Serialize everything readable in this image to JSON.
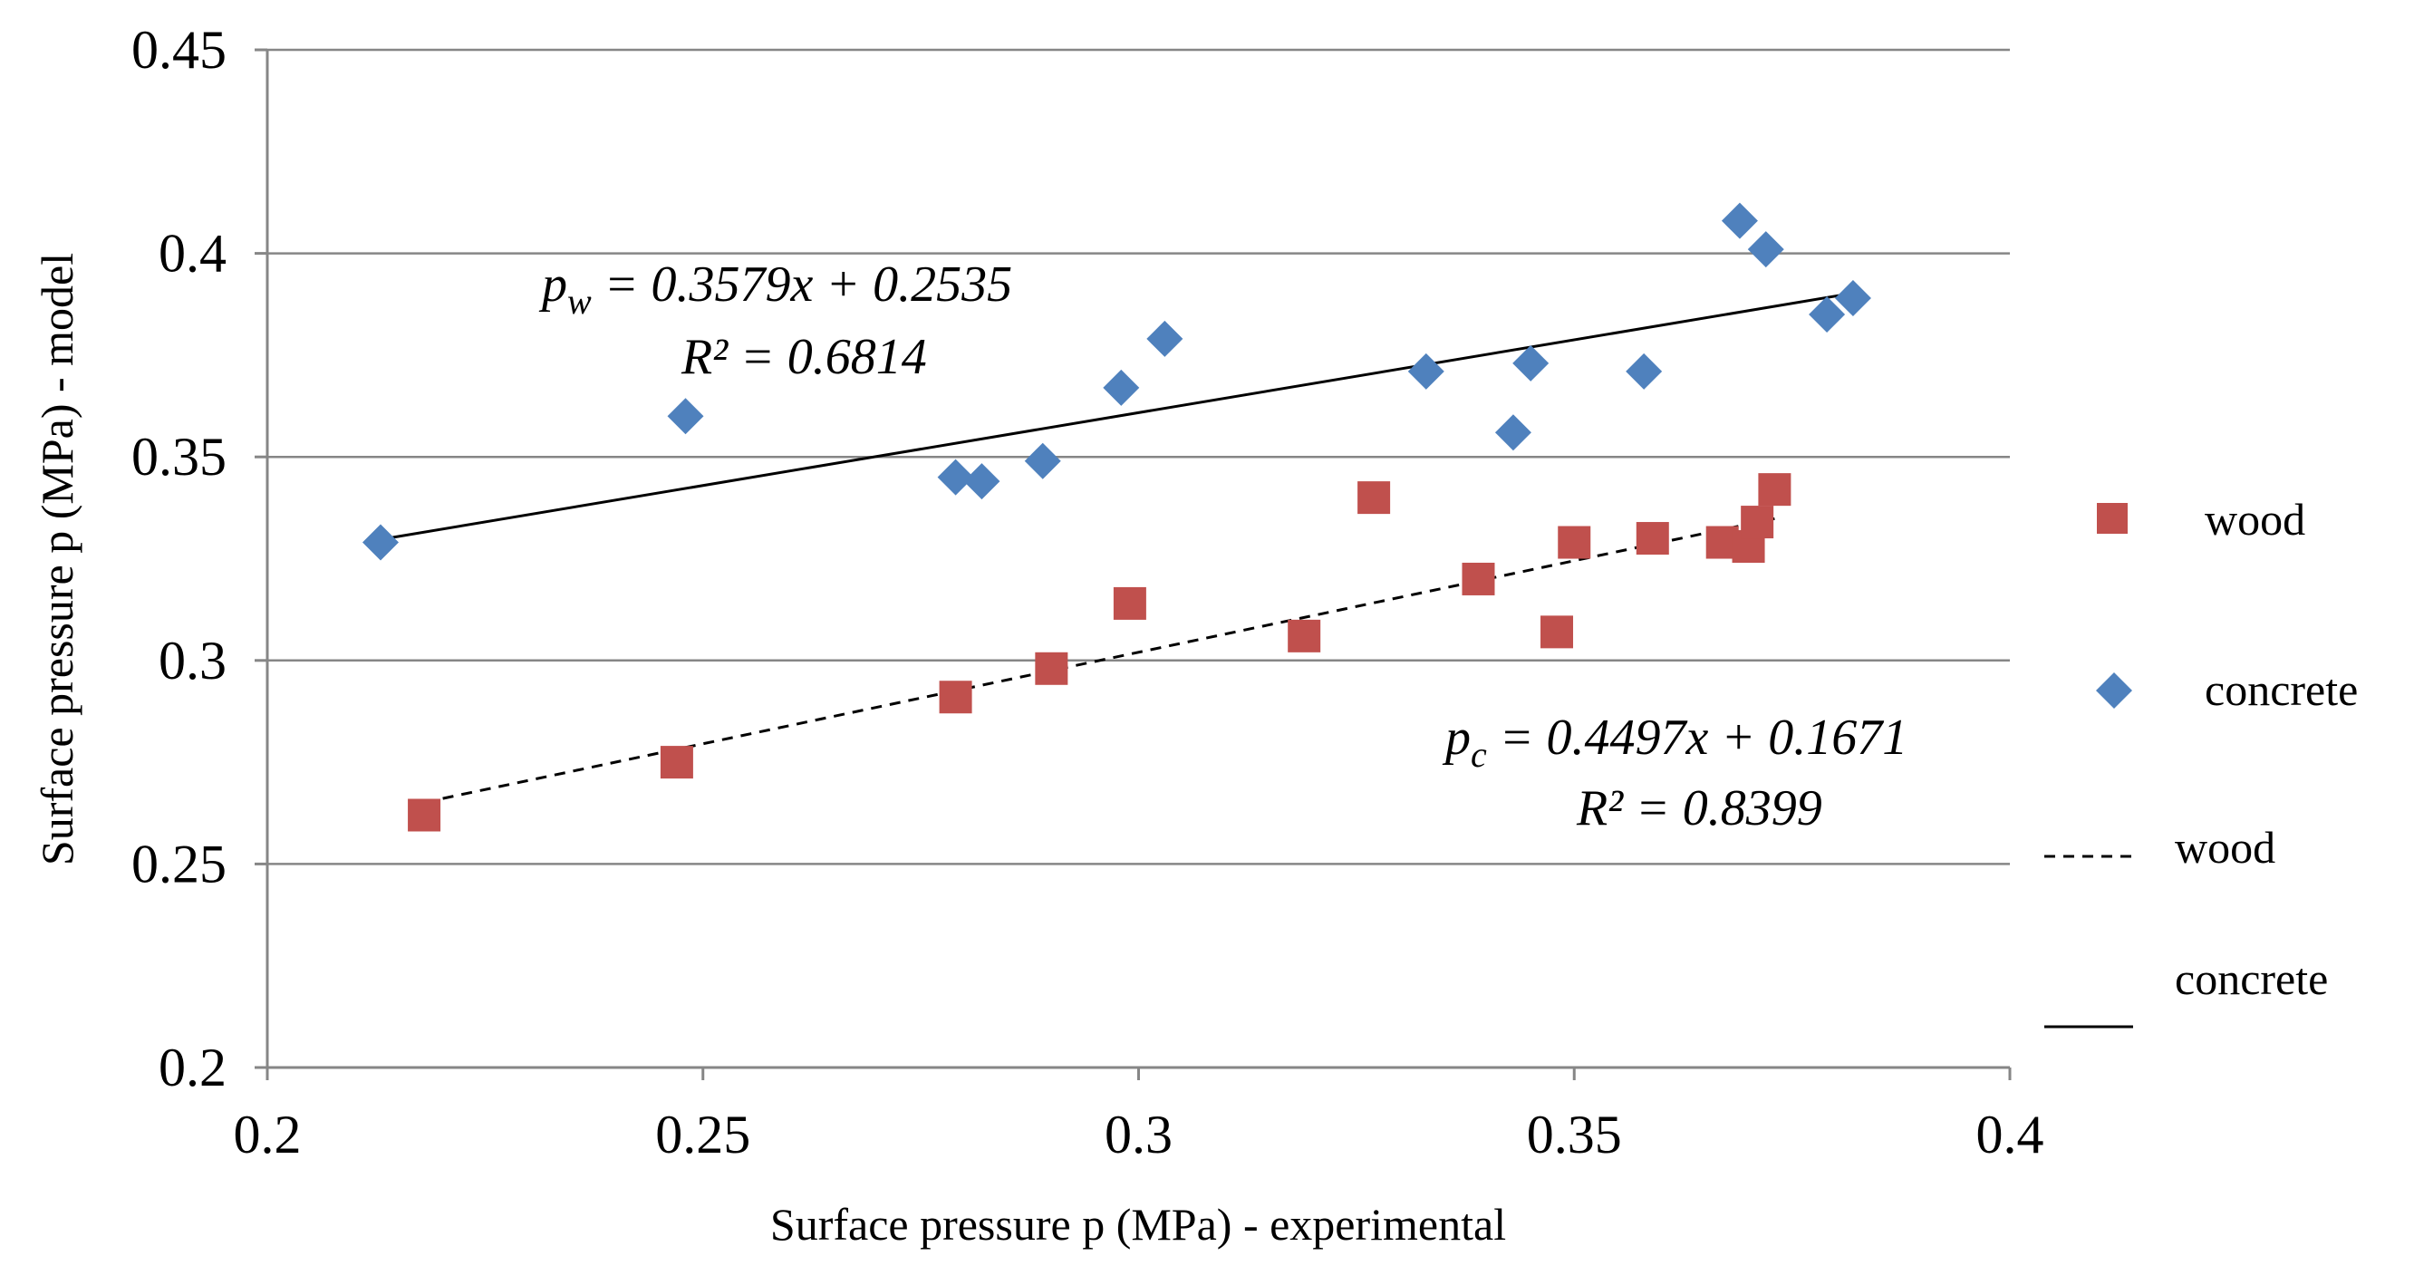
{
  "chart_data": {
    "type": "scatter",
    "xlabel": "Surface pressure p (MPa) - experimental",
    "ylabel": "Surface pressure p (MPa) - model",
    "xlim": [
      0.2,
      0.4
    ],
    "ylim": [
      0.2,
      0.45
    ],
    "x_ticks": [
      "0.2",
      "0.25",
      "0.3",
      "0.35",
      "0.4"
    ],
    "y_ticks": [
      "0.2",
      "0.25",
      "0.3",
      "0.35",
      "0.4",
      "0.45"
    ],
    "grid": "horizontal",
    "legend_position": "right",
    "series": [
      {
        "name": "wood",
        "marker": "square",
        "color": "#c0504d",
        "points": [
          [
            0.218,
            0.262
          ],
          [
            0.247,
            0.275
          ],
          [
            0.279,
            0.291
          ],
          [
            0.29,
            0.298
          ],
          [
            0.299,
            0.314
          ],
          [
            0.319,
            0.306
          ],
          [
            0.327,
            0.34
          ],
          [
            0.339,
            0.32
          ],
          [
            0.348,
            0.307
          ],
          [
            0.35,
            0.329
          ],
          [
            0.359,
            0.33
          ],
          [
            0.367,
            0.329
          ],
          [
            0.37,
            0.328
          ],
          [
            0.371,
            0.334
          ],
          [
            0.373,
            0.342
          ]
        ]
      },
      {
        "name": "concrete",
        "marker": "diamond",
        "color": "#4f81bd",
        "points": [
          [
            0.213,
            0.329
          ],
          [
            0.248,
            0.36
          ],
          [
            0.279,
            0.345
          ],
          [
            0.282,
            0.344
          ],
          [
            0.289,
            0.349
          ],
          [
            0.298,
            0.367
          ],
          [
            0.303,
            0.379
          ],
          [
            0.333,
            0.371
          ],
          [
            0.343,
            0.356
          ],
          [
            0.345,
            0.373
          ],
          [
            0.358,
            0.371
          ],
          [
            0.369,
            0.408
          ],
          [
            0.372,
            0.401
          ],
          [
            0.379,
            0.385
          ],
          [
            0.382,
            0.389
          ]
        ]
      }
    ],
    "trendlines": [
      {
        "name": "wood",
        "style": "dashed",
        "slope": 0.4497,
        "intercept": 0.1671,
        "x_range": [
          0.218,
          0.373
        ]
      },
      {
        "name": "concrete",
        "style": "solid",
        "slope": 0.3579,
        "intercept": 0.2535,
        "x_range": [
          0.213,
          0.382
        ]
      }
    ],
    "annotations": {
      "concrete_eq_main": "p",
      "concrete_eq_sub": "w",
      "concrete_eq_rest": " = 0.3579x + 0.2535",
      "concrete_r2": "R² = 0.6814",
      "wood_eq_main": "p",
      "wood_eq_sub": "c",
      "wood_eq_rest": " = 0.4497x + 0.1671",
      "wood_r2": "R² = 0.8399"
    },
    "legend": {
      "wood_marker": "wood",
      "concrete_marker": "concrete",
      "wood_line": "wood",
      "concrete_line": "concrete"
    }
  }
}
